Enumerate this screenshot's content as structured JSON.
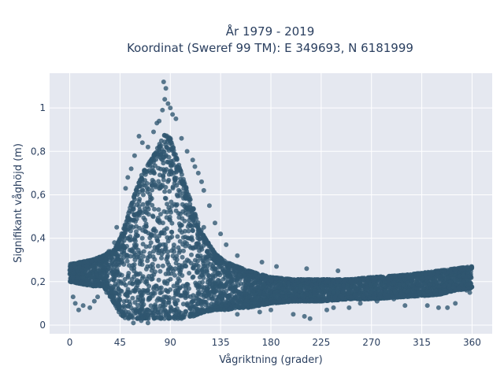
{
  "chart_data": {
    "type": "scatter",
    "title_lines": [
      "År 1979 - 2019",
      "Koordinat (Sweref 99 TM): E 349693, N 6181999"
    ],
    "xlabel": "Vågriktning (grader)",
    "ylabel": "Signifikant våghöjd (m)",
    "xlim": [
      -18,
      378
    ],
    "ylim": [
      -0.04,
      1.16
    ],
    "xticks": [
      0,
      45,
      90,
      135,
      180,
      225,
      270,
      315,
      360
    ],
    "xtick_labels": [
      "0",
      "45",
      "90",
      "135",
      "180",
      "225",
      "270",
      "315",
      "360"
    ],
    "yticks": [
      0,
      0.2,
      0.4,
      0.6,
      0.8,
      1
    ],
    "ytick_labels": [
      "0",
      "0,2",
      "0,4",
      "0,6",
      "0,8",
      "1"
    ],
    "grid": true,
    "marker_color": "#2f5670",
    "background_color": "#e5e8f0",
    "envelope_x": [
      0,
      10,
      20,
      30,
      40,
      45,
      50,
      55,
      60,
      65,
      70,
      75,
      80,
      85,
      90,
      95,
      100,
      105,
      110,
      115,
      120,
      130,
      140,
      150,
      160,
      180,
      200,
      225,
      250,
      270,
      300,
      330,
      345,
      360
    ],
    "envelope_upper": [
      0.28,
      0.29,
      0.3,
      0.32,
      0.35,
      0.4,
      0.47,
      0.56,
      0.63,
      0.7,
      0.74,
      0.78,
      0.83,
      0.88,
      0.86,
      0.78,
      0.7,
      0.62,
      0.55,
      0.47,
      0.41,
      0.33,
      0.29,
      0.27,
      0.25,
      0.22,
      0.21,
      0.21,
      0.21,
      0.22,
      0.23,
      0.25,
      0.26,
      0.27
    ],
    "envelope_lower": [
      0.2,
      0.19,
      0.18,
      0.18,
      0.1,
      0.05,
      0.03,
      0.03,
      0.03,
      0.03,
      0.03,
      0.03,
      0.03,
      0.03,
      0.03,
      0.03,
      0.03,
      0.04,
      0.04,
      0.05,
      0.06,
      0.07,
      0.07,
      0.08,
      0.08,
      0.1,
      0.11,
      0.11,
      0.12,
      0.12,
      0.13,
      0.14,
      0.16,
      0.17
    ],
    "outliers": [
      [
        84,
        1.12
      ],
      [
        86,
        1.09
      ],
      [
        85,
        1.04
      ],
      [
        88,
        1.02
      ],
      [
        83,
        0.99
      ],
      [
        90,
        1.0
      ],
      [
        80,
        0.94
      ],
      [
        92,
        0.97
      ],
      [
        78,
        0.93
      ],
      [
        95,
        0.95
      ],
      [
        75,
        0.89
      ],
      [
        62,
        0.87
      ],
      [
        65,
        0.84
      ],
      [
        100,
        0.86
      ],
      [
        70,
        0.82
      ],
      [
        58,
        0.78
      ],
      [
        105,
        0.8
      ],
      [
        55,
        0.72
      ],
      [
        110,
        0.76
      ],
      [
        112,
        0.73
      ],
      [
        115,
        0.7
      ],
      [
        52,
        0.68
      ],
      [
        118,
        0.66
      ],
      [
        120,
        0.62
      ],
      [
        50,
        0.63
      ],
      [
        125,
        0.55
      ],
      [
        130,
        0.47
      ],
      [
        135,
        0.42
      ],
      [
        140,
        0.37
      ],
      [
        150,
        0.32
      ],
      [
        172,
        0.29
      ],
      [
        185,
        0.27
      ],
      [
        212,
        0.26
      ],
      [
        240,
        0.25
      ],
      [
        35,
        0.34
      ],
      [
        40,
        0.38
      ],
      [
        28,
        0.31
      ],
      [
        42,
        0.45
      ],
      [
        120,
        0.45
      ],
      [
        96,
        0.6
      ],
      [
        5,
        0.1
      ],
      [
        8,
        0.07
      ],
      [
        12,
        0.09
      ],
      [
        18,
        0.08
      ],
      [
        22,
        0.11
      ],
      [
        25,
        0.13
      ],
      [
        33,
        0.15
      ],
      [
        3,
        0.13
      ],
      [
        57,
        0.01
      ],
      [
        64,
        0.02
      ],
      [
        70,
        0.01
      ],
      [
        150,
        0.05
      ],
      [
        200,
        0.05
      ],
      [
        210,
        0.04
      ],
      [
        215,
        0.03
      ],
      [
        250,
        0.08
      ],
      [
        260,
        0.1
      ],
      [
        300,
        0.09
      ],
      [
        320,
        0.09
      ],
      [
        330,
        0.08
      ],
      [
        338,
        0.08
      ],
      [
        345,
        0.1
      ],
      [
        355,
        0.16
      ],
      [
        358,
        0.15
      ],
      [
        290,
        0.12
      ],
      [
        275,
        0.11
      ],
      [
        236,
        0.08
      ],
      [
        170,
        0.06
      ],
      [
        180,
        0.07
      ],
      [
        230,
        0.07
      ]
    ]
  }
}
